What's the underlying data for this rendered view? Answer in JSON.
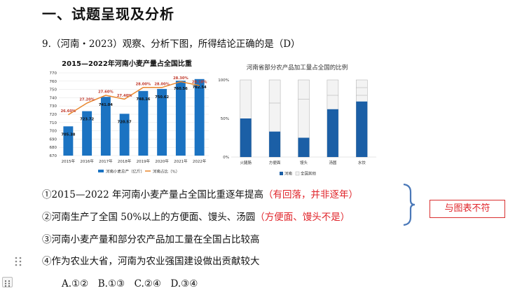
{
  "heading": "一、试题呈现及分析",
  "question": "9.（河南・2023）观察、分析下图，所得结论正确的是（D）",
  "chart_data": [
    {
      "type": "bar",
      "title": "2015—2022年河南小麦产量占全国比重",
      "categories": [
        "2015年",
        "2016年",
        "2017年",
        "2018年",
        "2019年",
        "2020年",
        "2021年",
        "2022年"
      ],
      "series": [
        {
          "name": "河南小麦总产（亿斤）",
          "values": [
            705.38,
            723.72,
            741.04,
            720.57,
            748.16,
            750.62,
            760.56,
            762.54
          ]
        },
        {
          "name": "河南占比（%）",
          "values": [
            26.6,
            27.2,
            27.6,
            27.4,
            28.0,
            28.0,
            28.3,
            28.1
          ]
        }
      ],
      "bar_labels": [
        "705.38",
        "723.72",
        "741.04",
        "720.57",
        "748.16",
        "750.62",
        "760.56",
        "762.54"
      ],
      "line_labels": [
        "26.60%",
        "27.20%",
        "27.60%",
        "27.40%",
        "28.00%",
        "28.00%",
        "28.30%",
        "28.10%"
      ],
      "yticks": [
        "670",
        "680",
        "690",
        "700",
        "710",
        "720",
        "730",
        "740",
        "750",
        "760",
        "770"
      ],
      "ylim": [
        670,
        770
      ],
      "line_ylim": [
        24.5,
        28.75
      ],
      "bar_color": "#1b73c2",
      "line_color": "#e8862c",
      "grid": true,
      "legend_position": "bottom"
    },
    {
      "type": "bar",
      "title": "河南省部分农产品加工量占全国的比例",
      "categories": [
        "火腿肠",
        "方便面",
        "馒头",
        "汤圆",
        "水饺"
      ],
      "series": [
        {
          "name": "河南",
          "values": [
            50,
            33,
            25,
            62,
            72
          ]
        },
        {
          "name": "全国其他",
          "values": [
            50,
            67,
            75,
            38,
            28
          ]
        }
      ],
      "inner_lines": [
        [],
        [
          70
        ],
        [
          75
        ],
        [
          80
        ],
        [
          80,
          90
        ]
      ],
      "yticks": [
        "0%",
        "50%",
        "100%"
      ],
      "ylim": [
        0,
        100
      ],
      "colors": {
        "henan": "#1b5fa6",
        "other": "#f3f3f3"
      },
      "legend_position": "bottom"
    }
  ],
  "statements": [
    {
      "main": "①2015—2022 年河南小麦产量占全国比重逐年提高",
      "note": "（有回落，并非逐年）"
    },
    {
      "main": "②河南生产了全国 50%以上的方便面、馒头、汤圆",
      "note": "（方便面、馒头不是）"
    },
    {
      "main": "③河南小麦产量和部分农产品加工量在全国占比较高",
      "note": ""
    },
    {
      "main": "④作为农业大省，河南为农业强国建设做出贡献较大",
      "note": ""
    }
  ],
  "answers": "A.①②　B.①③　C.②④　D.③④",
  "annotation": "与图表不符"
}
